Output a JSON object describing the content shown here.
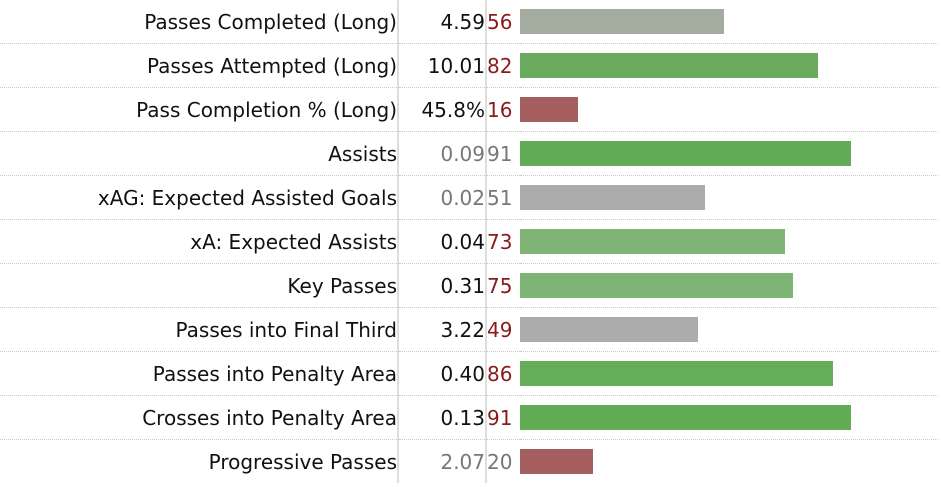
{
  "chart_data": {
    "type": "bar",
    "orientation": "horizontal",
    "xlim": [
      0,
      99
    ],
    "rows": [
      {
        "stat": "Passes Completed (Long)",
        "per90": "4.59",
        "percentile": 56,
        "pct_color": "#8b1a1a",
        "value_color": "#111111",
        "bar_color": "#a3ac9f"
      },
      {
        "stat": "Passes Attempted (Long)",
        "per90": "10.01",
        "percentile": 82,
        "pct_color": "#8b1a1a",
        "value_color": "#111111",
        "bar_color": "#6aab5f"
      },
      {
        "stat": "Pass Completion % (Long)",
        "per90": "45.8%",
        "percentile": 16,
        "pct_color": "#8b1a1a",
        "value_color": "#111111",
        "bar_color": "#a55e5e"
      },
      {
        "stat": "Assists",
        "per90": "0.09",
        "percentile": 91,
        "pct_color": "#777777",
        "value_color": "#777777",
        "bar_color": "#63ac57"
      },
      {
        "stat": "xAG: Expected Assisted Goals",
        "per90": "0.02",
        "percentile": 51,
        "pct_color": "#777777",
        "value_color": "#777777",
        "bar_color": "#acacac"
      },
      {
        "stat": "xA: Expected Assists",
        "per90": "0.04",
        "percentile": 73,
        "pct_color": "#8b1a1a",
        "value_color": "#111111",
        "bar_color": "#80b577"
      },
      {
        "stat": "Key Passes",
        "per90": "0.31",
        "percentile": 75,
        "pct_color": "#8b1a1a",
        "value_color": "#111111",
        "bar_color": "#7db574"
      },
      {
        "stat": "Passes into Final Third",
        "per90": "3.22",
        "percentile": 49,
        "pct_color": "#8b1a1a",
        "value_color": "#111111",
        "bar_color": "#acacac"
      },
      {
        "stat": "Passes into Penalty Area",
        "per90": "0.40",
        "percentile": 86,
        "pct_color": "#8b1a1a",
        "value_color": "#111111",
        "bar_color": "#66ad5a"
      },
      {
        "stat": "Crosses into Penalty Area",
        "per90": "0.13",
        "percentile": 91,
        "pct_color": "#8b1a1a",
        "value_color": "#111111",
        "bar_color": "#61ac55"
      },
      {
        "stat": "Progressive Passes",
        "per90": "2.07",
        "percentile": 20,
        "pct_color": "#777777",
        "value_color": "#777777",
        "bar_color": "#a55e5e"
      }
    ]
  }
}
